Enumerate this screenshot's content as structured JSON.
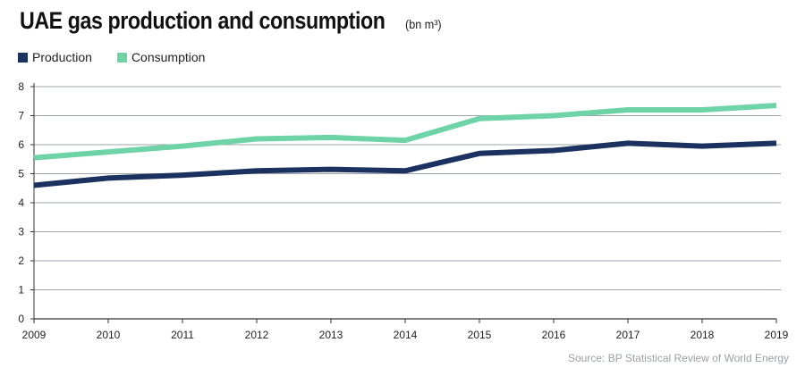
{
  "title": "UAE gas production and consumption",
  "unit_label": "(bn m³)",
  "source": "Source: BP Statistical Review of World Energy",
  "colors": {
    "production": "#1b3160",
    "consumption": "#6fd3a8",
    "grid": "#9ea5aa",
    "axis": "#333333"
  },
  "chart_data": {
    "type": "line",
    "title": "UAE gas production and consumption",
    "unit": "(bn m³)",
    "x": [
      "2009",
      "2010",
      "2011",
      "2012",
      "2013",
      "2014",
      "2015",
      "2016",
      "2017",
      "2018",
      "2019"
    ],
    "ylim": [
      0,
      8
    ],
    "yticks": [
      "0",
      "1",
      "2",
      "3",
      "4",
      "5",
      "6",
      "7",
      "8"
    ],
    "grid": "horizontal",
    "legend_position": "top-left",
    "series": [
      {
        "name": "Production",
        "color": "#1b3160",
        "values": [
          4.6,
          4.85,
          4.95,
          5.1,
          5.15,
          5.1,
          5.7,
          5.8,
          6.05,
          5.95,
          6.05
        ]
      },
      {
        "name": "Consumption",
        "color": "#6fd3a8",
        "values": [
          5.55,
          5.75,
          5.95,
          6.2,
          6.25,
          6.15,
          6.9,
          7.0,
          7.2,
          7.2,
          7.35
        ]
      }
    ]
  }
}
